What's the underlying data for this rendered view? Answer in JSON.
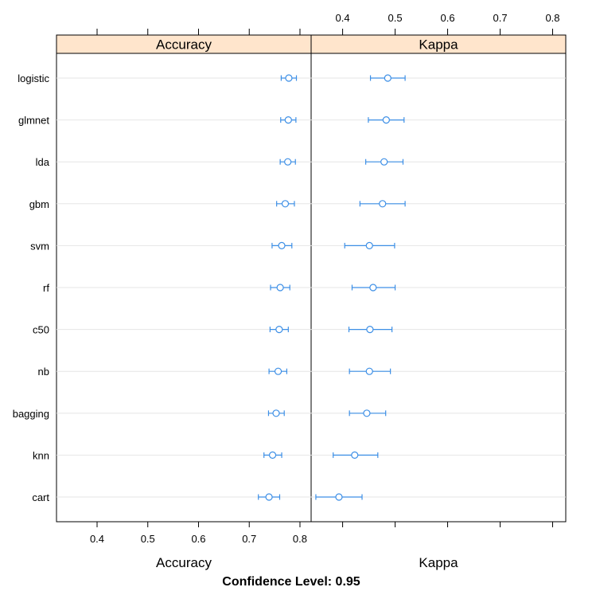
{
  "chart_data": [
    {
      "type": "dotplot-interval",
      "panel_title": "Accuracy",
      "xlabel": "Accuracy",
      "xlim": [
        0.32,
        0.822
      ],
      "ticks": [
        0.4,
        0.5,
        0.6,
        0.7,
        0.8
      ],
      "tick_labels": [
        "0.4",
        "0.5",
        "0.6",
        "0.7",
        "0.8"
      ],
      "categories": [
        "logistic",
        "glmnet",
        "lda",
        "gbm",
        "svm",
        "rf",
        "c50",
        "nb",
        "bagging",
        "knn",
        "cart"
      ],
      "values": [
        0.778,
        0.777,
        0.776,
        0.771,
        0.764,
        0.761,
        0.759,
        0.757,
        0.753,
        0.746,
        0.739
      ],
      "lower": [
        0.763,
        0.762,
        0.761,
        0.754,
        0.745,
        0.742,
        0.741,
        0.739,
        0.738,
        0.729,
        0.718
      ],
      "upper": [
        0.793,
        0.792,
        0.791,
        0.789,
        0.784,
        0.78,
        0.777,
        0.774,
        0.769,
        0.764,
        0.76
      ]
    },
    {
      "type": "dotplot-interval",
      "panel_title": "Kappa",
      "xlabel": "Kappa",
      "xlim": [
        0.34,
        0.825
      ],
      "ticks": [
        0.4,
        0.5,
        0.6,
        0.7,
        0.8
      ],
      "tick_labels": [
        "0.4",
        "0.5",
        "0.6",
        "0.7",
        "0.8"
      ],
      "categories": [
        "logistic",
        "glmnet",
        "lda",
        "gbm",
        "svm",
        "rf",
        "c50",
        "nb",
        "bagging",
        "knn",
        "cart"
      ],
      "values": [
        0.486,
        0.483,
        0.479,
        0.476,
        0.451,
        0.458,
        0.452,
        0.451,
        0.446,
        0.423,
        0.393
      ],
      "lower": [
        0.453,
        0.449,
        0.444,
        0.433,
        0.404,
        0.418,
        0.412,
        0.413,
        0.413,
        0.382,
        0.349
      ],
      "upper": [
        0.519,
        0.517,
        0.515,
        0.519,
        0.499,
        0.5,
        0.494,
        0.491,
        0.482,
        0.467,
        0.437
      ]
    }
  ],
  "footer": "Confidence Level: 0.95",
  "colors": {
    "series": "#3d8fe6",
    "strip": "#ffe5cc",
    "grid": "#e6e6e6",
    "frame": "#000000"
  }
}
